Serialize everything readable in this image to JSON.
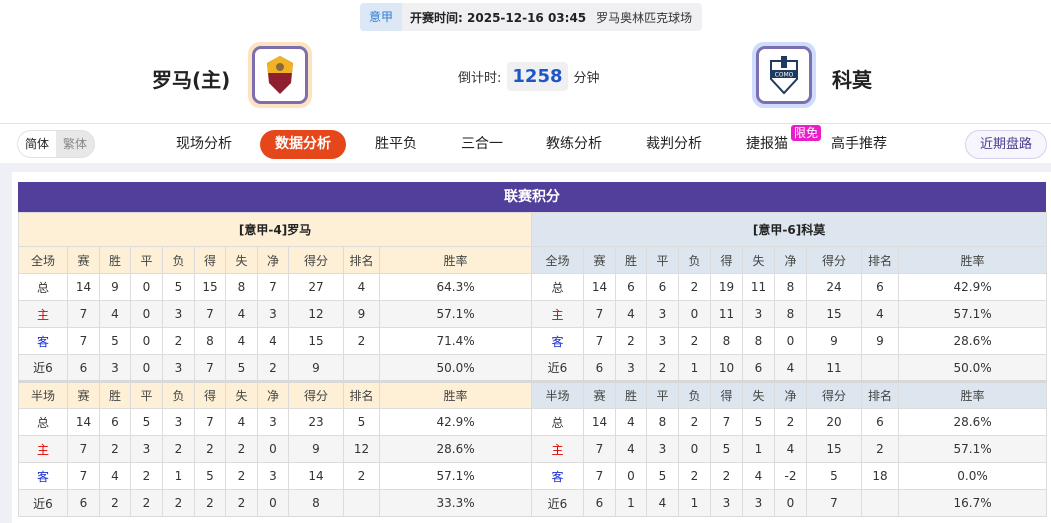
{
  "match": {
    "league": "意甲",
    "time_label": "开赛时间:",
    "time": "2025-12-16 03:45",
    "venue": "罗马奥林匹克球场"
  },
  "home": {
    "name": "罗马(主)",
    "logo_text": "ROMA"
  },
  "away": {
    "name": "科莫",
    "logo_text": "COMO"
  },
  "countdown": {
    "label": "倒计时:",
    "value": "1258",
    "unit": "分钟"
  },
  "lang": {
    "simplified": "简体",
    "traditional": "繁体"
  },
  "tabs": [
    {
      "label": "现场分析"
    },
    {
      "label": "数据分析",
      "active": true
    },
    {
      "label": "胜平负"
    },
    {
      "label": "三合一"
    },
    {
      "label": "教练分析"
    },
    {
      "label": "裁判分析"
    },
    {
      "label": "捷报猫",
      "badge": "限免"
    },
    {
      "label": "高手推荐"
    }
  ],
  "recent_button": "近期盘路",
  "section_title": "联赛积分",
  "colors": {
    "accent": "#523f9c",
    "active_tab": "#e5461a",
    "home_row": "#e00000",
    "away_row": "#1a2fd0"
  },
  "tables": [
    {
      "team": "[意甲-4]罗马",
      "full_header": [
        "全场",
        "赛",
        "胜",
        "平",
        "负",
        "得",
        "失",
        "净",
        "得分",
        "排名",
        "胜率"
      ],
      "full": [
        [
          "总",
          "14",
          "9",
          "0",
          "5",
          "15",
          "8",
          "7",
          "27",
          "4",
          "64.3%"
        ],
        [
          "主",
          "7",
          "4",
          "0",
          "3",
          "7",
          "4",
          "3",
          "12",
          "9",
          "57.1%"
        ],
        [
          "客",
          "7",
          "5",
          "0",
          "2",
          "8",
          "4",
          "4",
          "15",
          "2",
          "71.4%"
        ],
        [
          "近6",
          "6",
          "3",
          "0",
          "3",
          "7",
          "5",
          "2",
          "9",
          "",
          "50.0%"
        ]
      ],
      "half_header": [
        "半场",
        "赛",
        "胜",
        "平",
        "负",
        "得",
        "失",
        "净",
        "得分",
        "排名",
        "胜率"
      ],
      "half": [
        [
          "总",
          "14",
          "6",
          "5",
          "3",
          "7",
          "4",
          "3",
          "23",
          "5",
          "42.9%"
        ],
        [
          "主",
          "7",
          "2",
          "3",
          "2",
          "2",
          "2",
          "0",
          "9",
          "12",
          "28.6%"
        ],
        [
          "客",
          "7",
          "4",
          "2",
          "1",
          "5",
          "2",
          "3",
          "14",
          "2",
          "57.1%"
        ],
        [
          "近6",
          "6",
          "2",
          "2",
          "2",
          "2",
          "2",
          "0",
          "8",
          "",
          "33.3%"
        ]
      ]
    },
    {
      "team": "[意甲-6]科莫",
      "full_header": [
        "全场",
        "赛",
        "胜",
        "平",
        "负",
        "得",
        "失",
        "净",
        "得分",
        "排名",
        "胜率"
      ],
      "full": [
        [
          "总",
          "14",
          "6",
          "6",
          "2",
          "19",
          "11",
          "8",
          "24",
          "6",
          "42.9%"
        ],
        [
          "主",
          "7",
          "4",
          "3",
          "0",
          "11",
          "3",
          "8",
          "15",
          "4",
          "57.1%"
        ],
        [
          "客",
          "7",
          "2",
          "3",
          "2",
          "8",
          "8",
          "0",
          "9",
          "9",
          "28.6%"
        ],
        [
          "近6",
          "6",
          "3",
          "2",
          "1",
          "10",
          "6",
          "4",
          "11",
          "",
          "50.0%"
        ]
      ],
      "half_header": [
        "半场",
        "赛",
        "胜",
        "平",
        "负",
        "得",
        "失",
        "净",
        "得分",
        "排名",
        "胜率"
      ],
      "half": [
        [
          "总",
          "14",
          "4",
          "8",
          "2",
          "7",
          "5",
          "2",
          "20",
          "6",
          "28.6%"
        ],
        [
          "主",
          "7",
          "4",
          "3",
          "0",
          "5",
          "1",
          "4",
          "15",
          "2",
          "57.1%"
        ],
        [
          "客",
          "7",
          "0",
          "5",
          "2",
          "2",
          "4",
          "-2",
          "5",
          "18",
          "0.0%"
        ],
        [
          "近6",
          "6",
          "1",
          "4",
          "1",
          "3",
          "3",
          "0",
          "7",
          "",
          "16.7%"
        ]
      ]
    }
  ]
}
